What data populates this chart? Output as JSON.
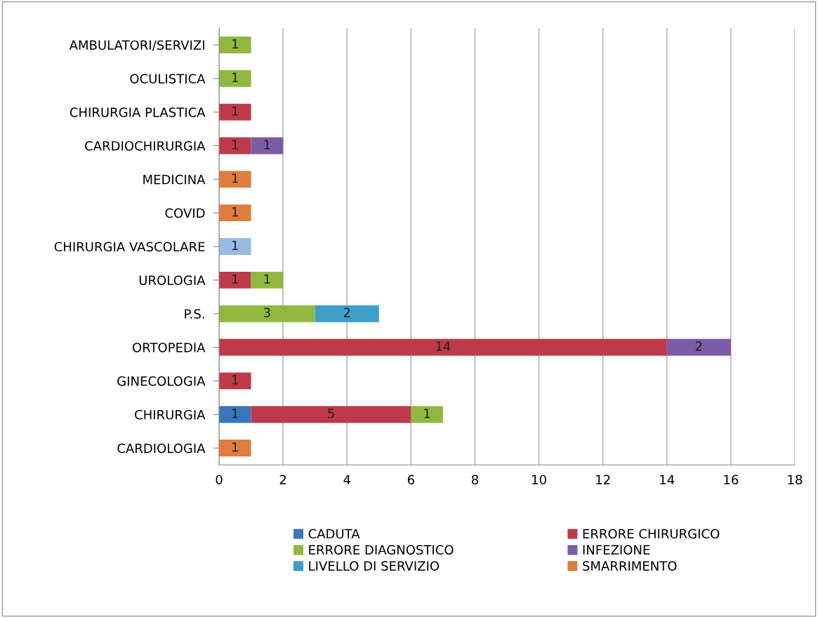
{
  "chart_data": {
    "type": "bar",
    "orientation": "horizontal",
    "stacked": true,
    "categories": [
      "AMBULATORI/SERVIZI",
      "OCULISTICA",
      "CHIRURGIA PLASTICA",
      "CARDIOCHIRURGIA",
      "MEDICINA",
      "COVID",
      "CHIRURGIA VASCOLARE",
      "UROLOGIA",
      "P.S.",
      "ORTOPEDIA",
      "GINECOLOGIA",
      "CHIRURGIA",
      "CARDIOLOGIA"
    ],
    "series": [
      {
        "name": "CADUTA",
        "color": "#3b74bf",
        "values": [
          null,
          null,
          null,
          null,
          null,
          null,
          null,
          null,
          null,
          null,
          null,
          1,
          null
        ]
      },
      {
        "name": "ERRORE CHIRURGICO",
        "color": "#be3a4a",
        "values": [
          null,
          null,
          1,
          1,
          null,
          null,
          null,
          1,
          null,
          14,
          1,
          5,
          null
        ]
      },
      {
        "name": "ERRORE DIAGNOSTICO",
        "color": "#90b840",
        "values": [
          1,
          1,
          null,
          null,
          null,
          null,
          null,
          1,
          3,
          null,
          null,
          1,
          null
        ]
      },
      {
        "name": "INFEZIONE",
        "color": "#7d5ba6",
        "values": [
          null,
          null,
          null,
          1,
          null,
          null,
          null,
          null,
          null,
          2,
          null,
          null,
          null
        ]
      },
      {
        "name": "LIVELLO DI SERVIZIO",
        "color": "#3d9fc9",
        "values": [
          null,
          null,
          null,
          null,
          null,
          null,
          null,
          null,
          2,
          null,
          null,
          null,
          null
        ]
      },
      {
        "name": "SMARRIMENTO",
        "color": "#e07d3e",
        "values": [
          null,
          null,
          null,
          null,
          1,
          1,
          null,
          null,
          null,
          null,
          null,
          null,
          1
        ]
      },
      {
        "color": "#98bbe4",
        "values": [
          null,
          null,
          null,
          null,
          null,
          null,
          1,
          null,
          null,
          null,
          null,
          null,
          null
        ]
      }
    ],
    "xlim": [
      0,
      18
    ],
    "xticks": [
      0,
      2,
      4,
      6,
      8,
      10,
      12,
      14,
      16,
      18
    ],
    "grid": "x",
    "legend": "bottom",
    "data_labels": true
  }
}
